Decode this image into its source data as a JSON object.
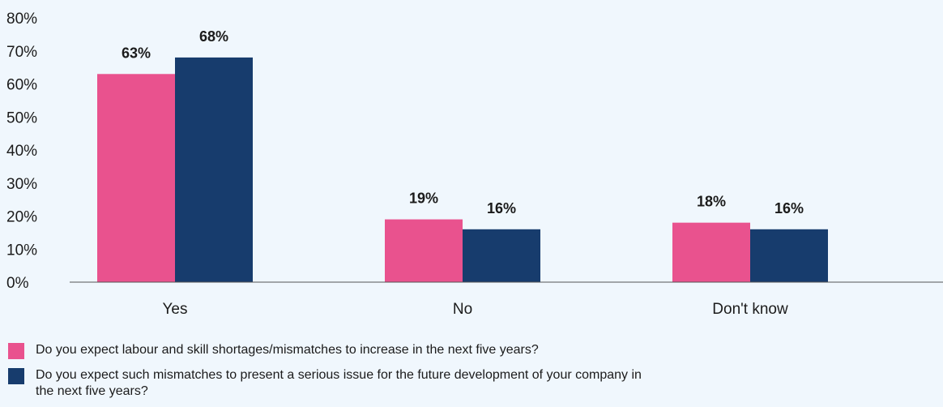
{
  "chart_data": {
    "type": "bar",
    "categories": [
      "Yes",
      "No",
      "Don't know"
    ],
    "series": [
      {
        "name": "Do you expect labour and skill shortages/mismatches to increase in the next five years?",
        "values": [
          63,
          19,
          18
        ],
        "labels": [
          "63%",
          "19%",
          "18%"
        ],
        "color": "#e9528e"
      },
      {
        "name": "Do you expect such mismatches to present a serious issue for the future development of your company in the next five years?",
        "values": [
          68,
          16,
          16
        ],
        "labels": [
          "68%",
          "16%",
          "16%"
        ],
        "color": "#173c6d"
      }
    ],
    "ylim": [
      0,
      80
    ],
    "yticks": [
      "0%",
      "10%",
      "20%",
      "30%",
      "40%",
      "50%",
      "60%",
      "70%",
      "80%"
    ],
    "grid": false,
    "legend_position": "bottom-left"
  }
}
